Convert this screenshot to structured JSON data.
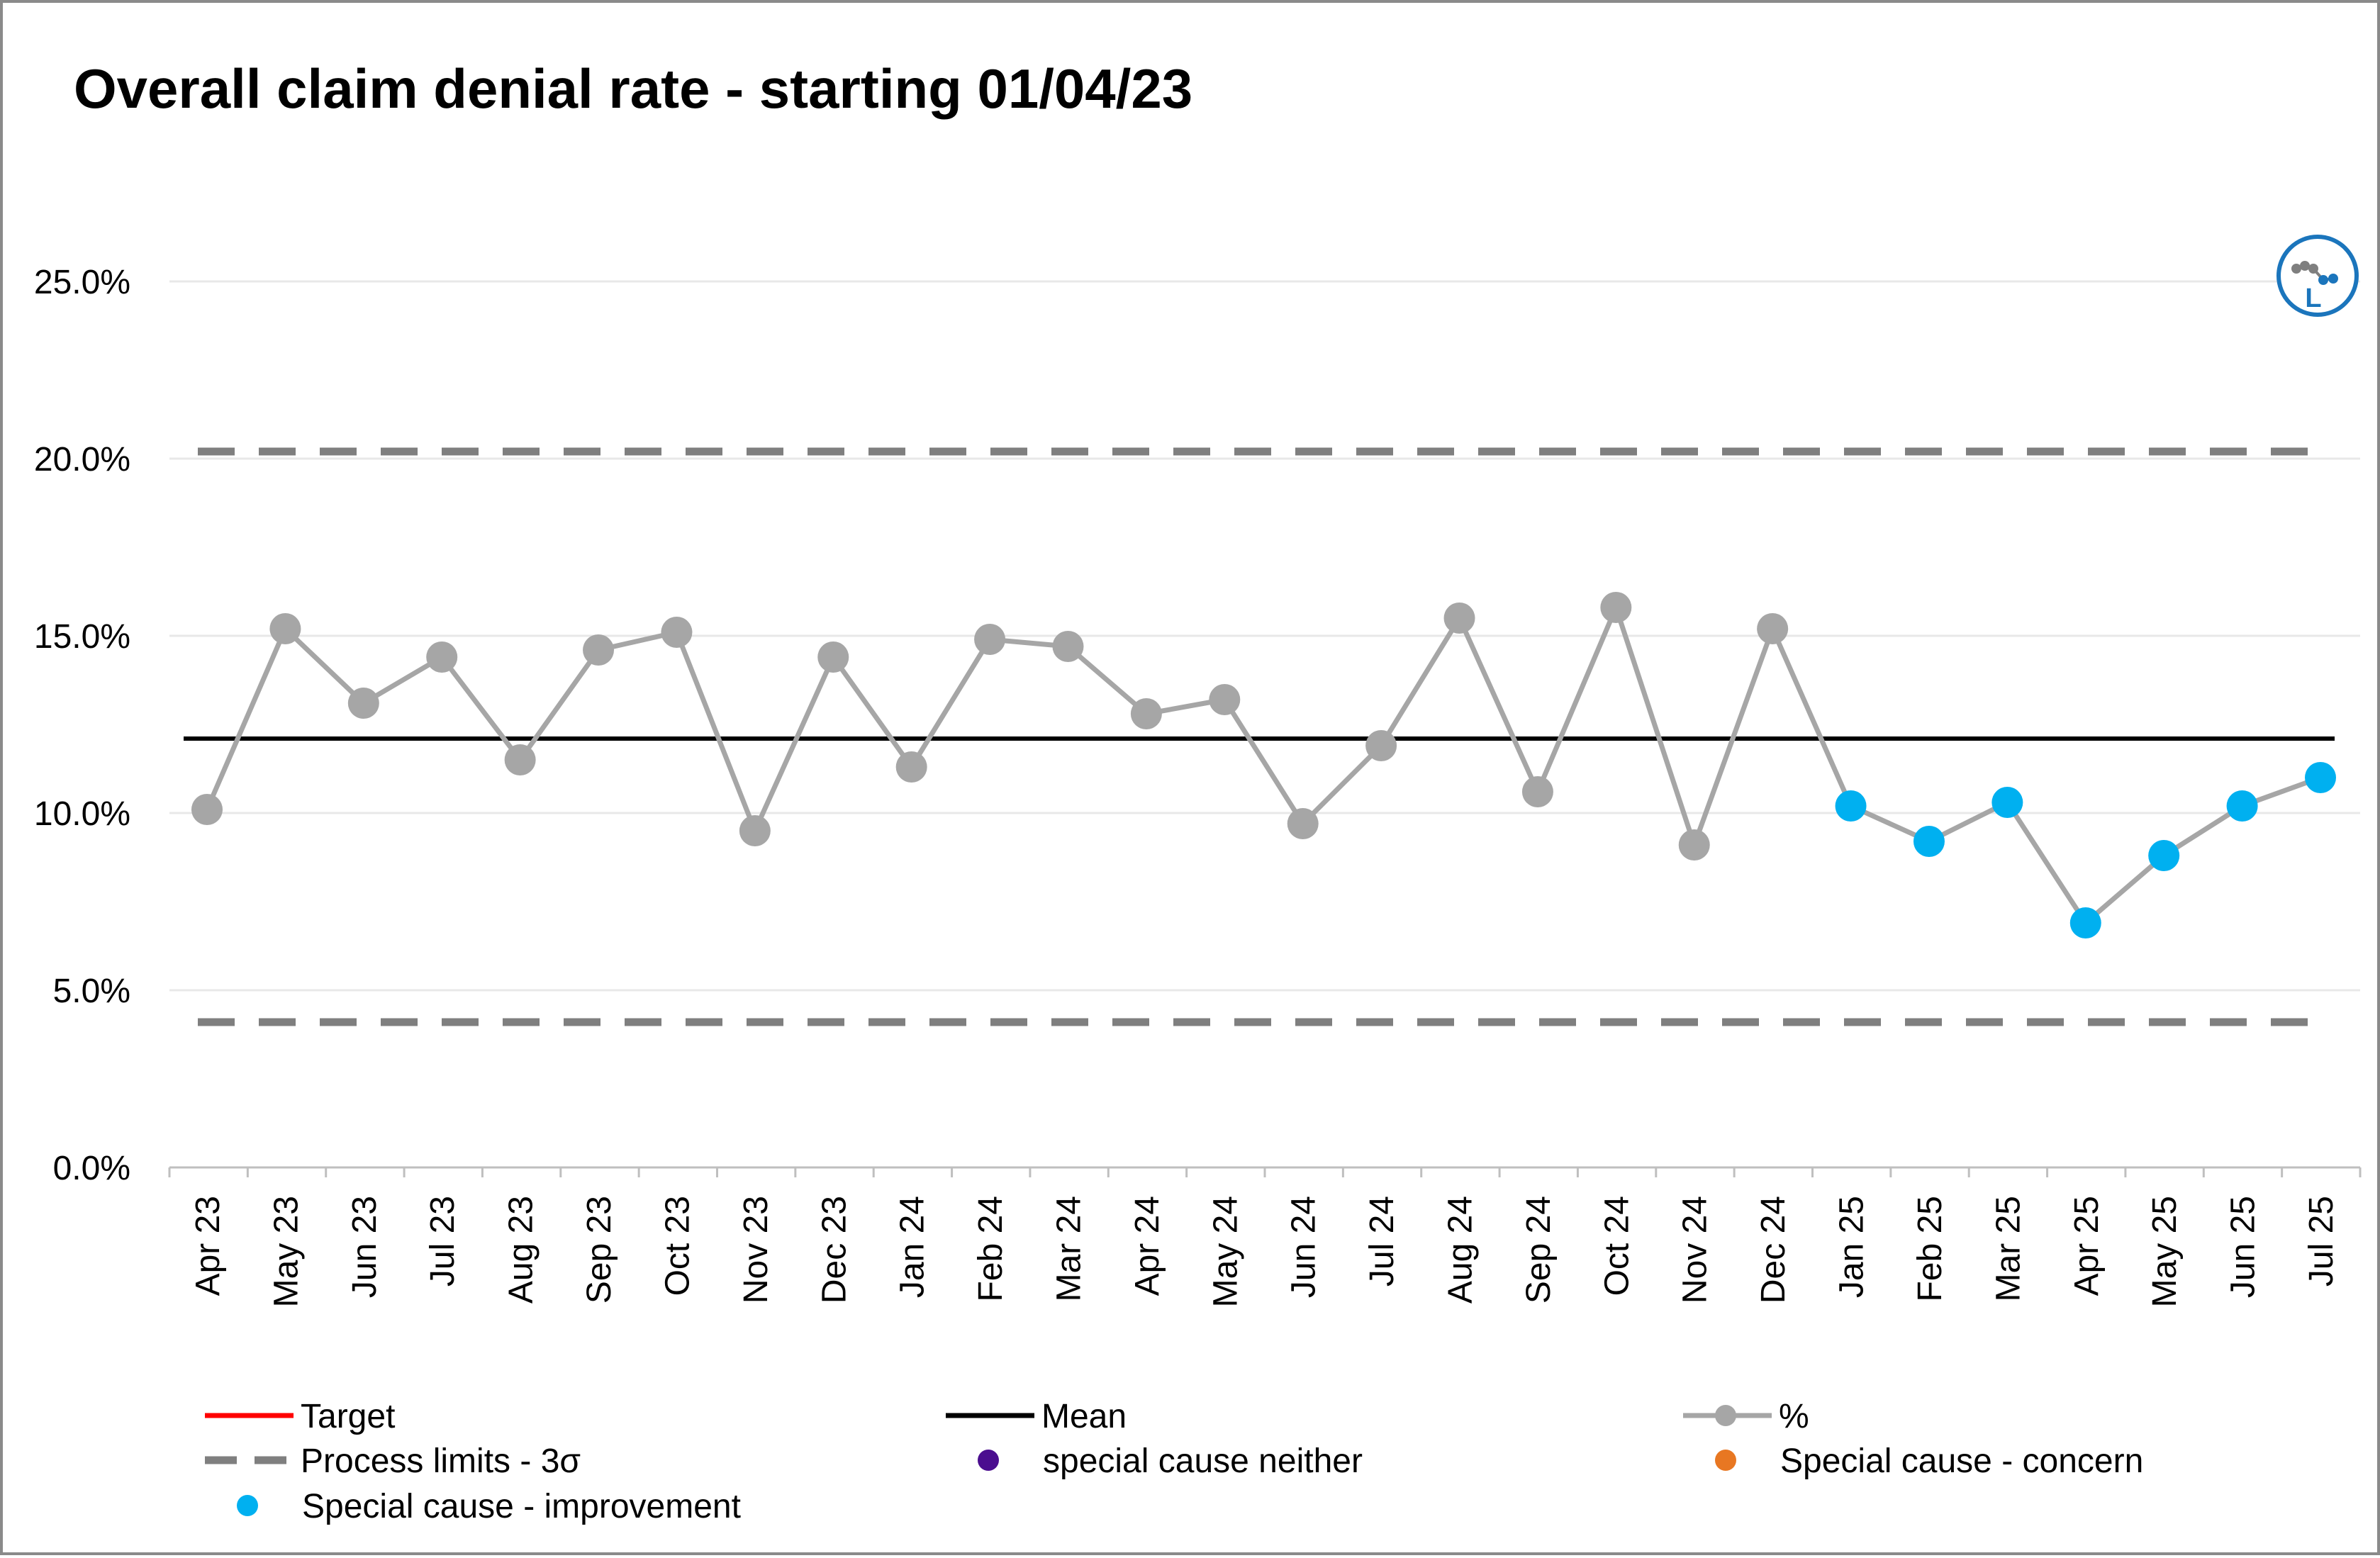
{
  "chart_data": {
    "type": "line",
    "title": "Overall claim denial rate - starting 01/04/23",
    "xlabel": "",
    "ylabel": "",
    "ylim": [
      0,
      0.25
    ],
    "y_ticks": [
      0,
      0.05,
      0.1,
      0.15,
      0.2,
      0.25
    ],
    "y_tick_labels": [
      "0.0%",
      "5.0%",
      "10.0%",
      "15.0%",
      "20.0%",
      "25.0%"
    ],
    "grid": true,
    "legend_position": "bottom",
    "categories": [
      "Apr 23",
      "May 23",
      "Jun 23",
      "Jul 23",
      "Aug 23",
      "Sep 23",
      "Oct 23",
      "Nov 23",
      "Dec 23",
      "Jan 24",
      "Feb 24",
      "Mar 24",
      "Apr 24",
      "May 24",
      "Jun 24",
      "Jul 24",
      "Aug 24",
      "Sep 24",
      "Oct 24",
      "Nov 24",
      "Dec 24",
      "Jan 25",
      "Feb 25",
      "Mar 25",
      "Apr 25",
      "May 25",
      "Jun 25",
      "Jul 25"
    ],
    "series": [
      {
        "name": "%",
        "color": "#a6a6a6",
        "values": [
          0.101,
          0.152,
          0.131,
          0.144,
          0.115,
          0.146,
          0.151,
          0.095,
          0.144,
          0.113,
          0.149,
          0.147,
          0.128,
          0.132,
          0.097,
          0.119,
          0.155,
          0.106,
          0.158,
          0.091,
          0.152,
          0.102,
          0.092,
          0.103,
          0.069,
          0.088,
          0.102,
          0.11
        ],
        "special_cause_improvement": [
          false,
          false,
          false,
          false,
          false,
          false,
          false,
          false,
          false,
          false,
          false,
          false,
          false,
          false,
          false,
          false,
          false,
          false,
          false,
          false,
          false,
          true,
          true,
          true,
          true,
          true,
          true,
          true
        ]
      },
      {
        "name": "Mean",
        "color": "#000000",
        "value": 0.121
      },
      {
        "name": "Process limits - 3σ",
        "color": "#7f7f7f",
        "upper": 0.202,
        "lower": 0.041
      }
    ],
    "legend": [
      {
        "label": "Target",
        "kind": "line",
        "color": "#ff0000"
      },
      {
        "label": "Mean",
        "kind": "line",
        "color": "#000000"
      },
      {
        "label": "%",
        "kind": "line-marker",
        "color": "#a6a6a6"
      },
      {
        "label": "Process limits - 3σ",
        "kind": "dashed",
        "color": "#7f7f7f"
      },
      {
        "label": "special cause neither",
        "kind": "marker",
        "color": "#4b0e8f"
      },
      {
        "label": "Special cause - concern",
        "kind": "marker",
        "color": "#e87722"
      },
      {
        "label": "Special cause  - improvement",
        "kind": "marker",
        "color": "#00b0f0"
      }
    ],
    "colors": {
      "improvement": "#00b0f0",
      "normal_point": "#a6a6a6",
      "gridline": "#e8e8e8",
      "axis": "#bfbfbf"
    },
    "badge_icon": "spc-variation-icon",
    "badge_letter": "L"
  }
}
